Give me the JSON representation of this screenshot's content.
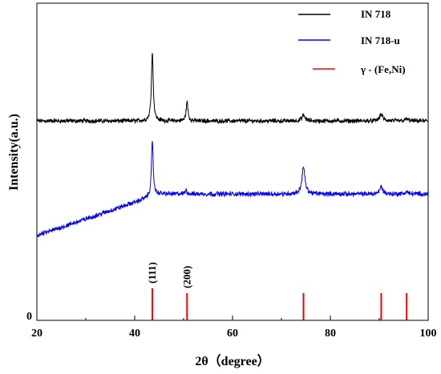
{
  "chart_data": {
    "type": "line",
    "xlabel": "2θ（degree）",
    "ylabel": "Intensity(a.u.)",
    "xlim": [
      20,
      100
    ],
    "x_ticks": [
      "20",
      "40",
      "60",
      "80",
      "100"
    ],
    "y_ticks": [
      "0"
    ],
    "grid": false,
    "legend_position": "top-right",
    "series": [
      {
        "name": "IN 718",
        "color": "#000000",
        "baseline": 1.0,
        "peaks": [
          {
            "x": 43.6,
            "height": 3.6
          },
          {
            "x": 50.7,
            "height": 1.0
          },
          {
            "x": 74.5,
            "height": 0.3
          },
          {
            "x": 90.4,
            "height": 0.35
          },
          {
            "x": 95.6,
            "height": 0.1
          }
        ]
      },
      {
        "name": "IN 718-u",
        "color": "#0000ff",
        "baseline_start": -0.15,
        "baseline_end": 0.1,
        "baseline_bend_x": 45,
        "peaks": [
          {
            "x": 43.6,
            "height": 2.6
          },
          {
            "x": 50.5,
            "height": 0.2
          },
          {
            "x": 74.5,
            "height": 1.3
          },
          {
            "x": 90.4,
            "height": 0.35
          },
          {
            "x": 95.6,
            "height": 0.1
          }
        ]
      }
    ],
    "reference": {
      "name": "γ - (Fe,Ni)",
      "color": "#ff0000",
      "lines": [
        {
          "x": 43.6,
          "height": 1.0,
          "label": "(111)"
        },
        {
          "x": 50.7,
          "height": 0.85,
          "label": "(200)"
        },
        {
          "x": 74.5,
          "height": 0.85,
          "label": ""
        },
        {
          "x": 90.4,
          "height": 0.85,
          "label": ""
        },
        {
          "x": 95.6,
          "height": 0.85,
          "label": ""
        }
      ]
    }
  }
}
